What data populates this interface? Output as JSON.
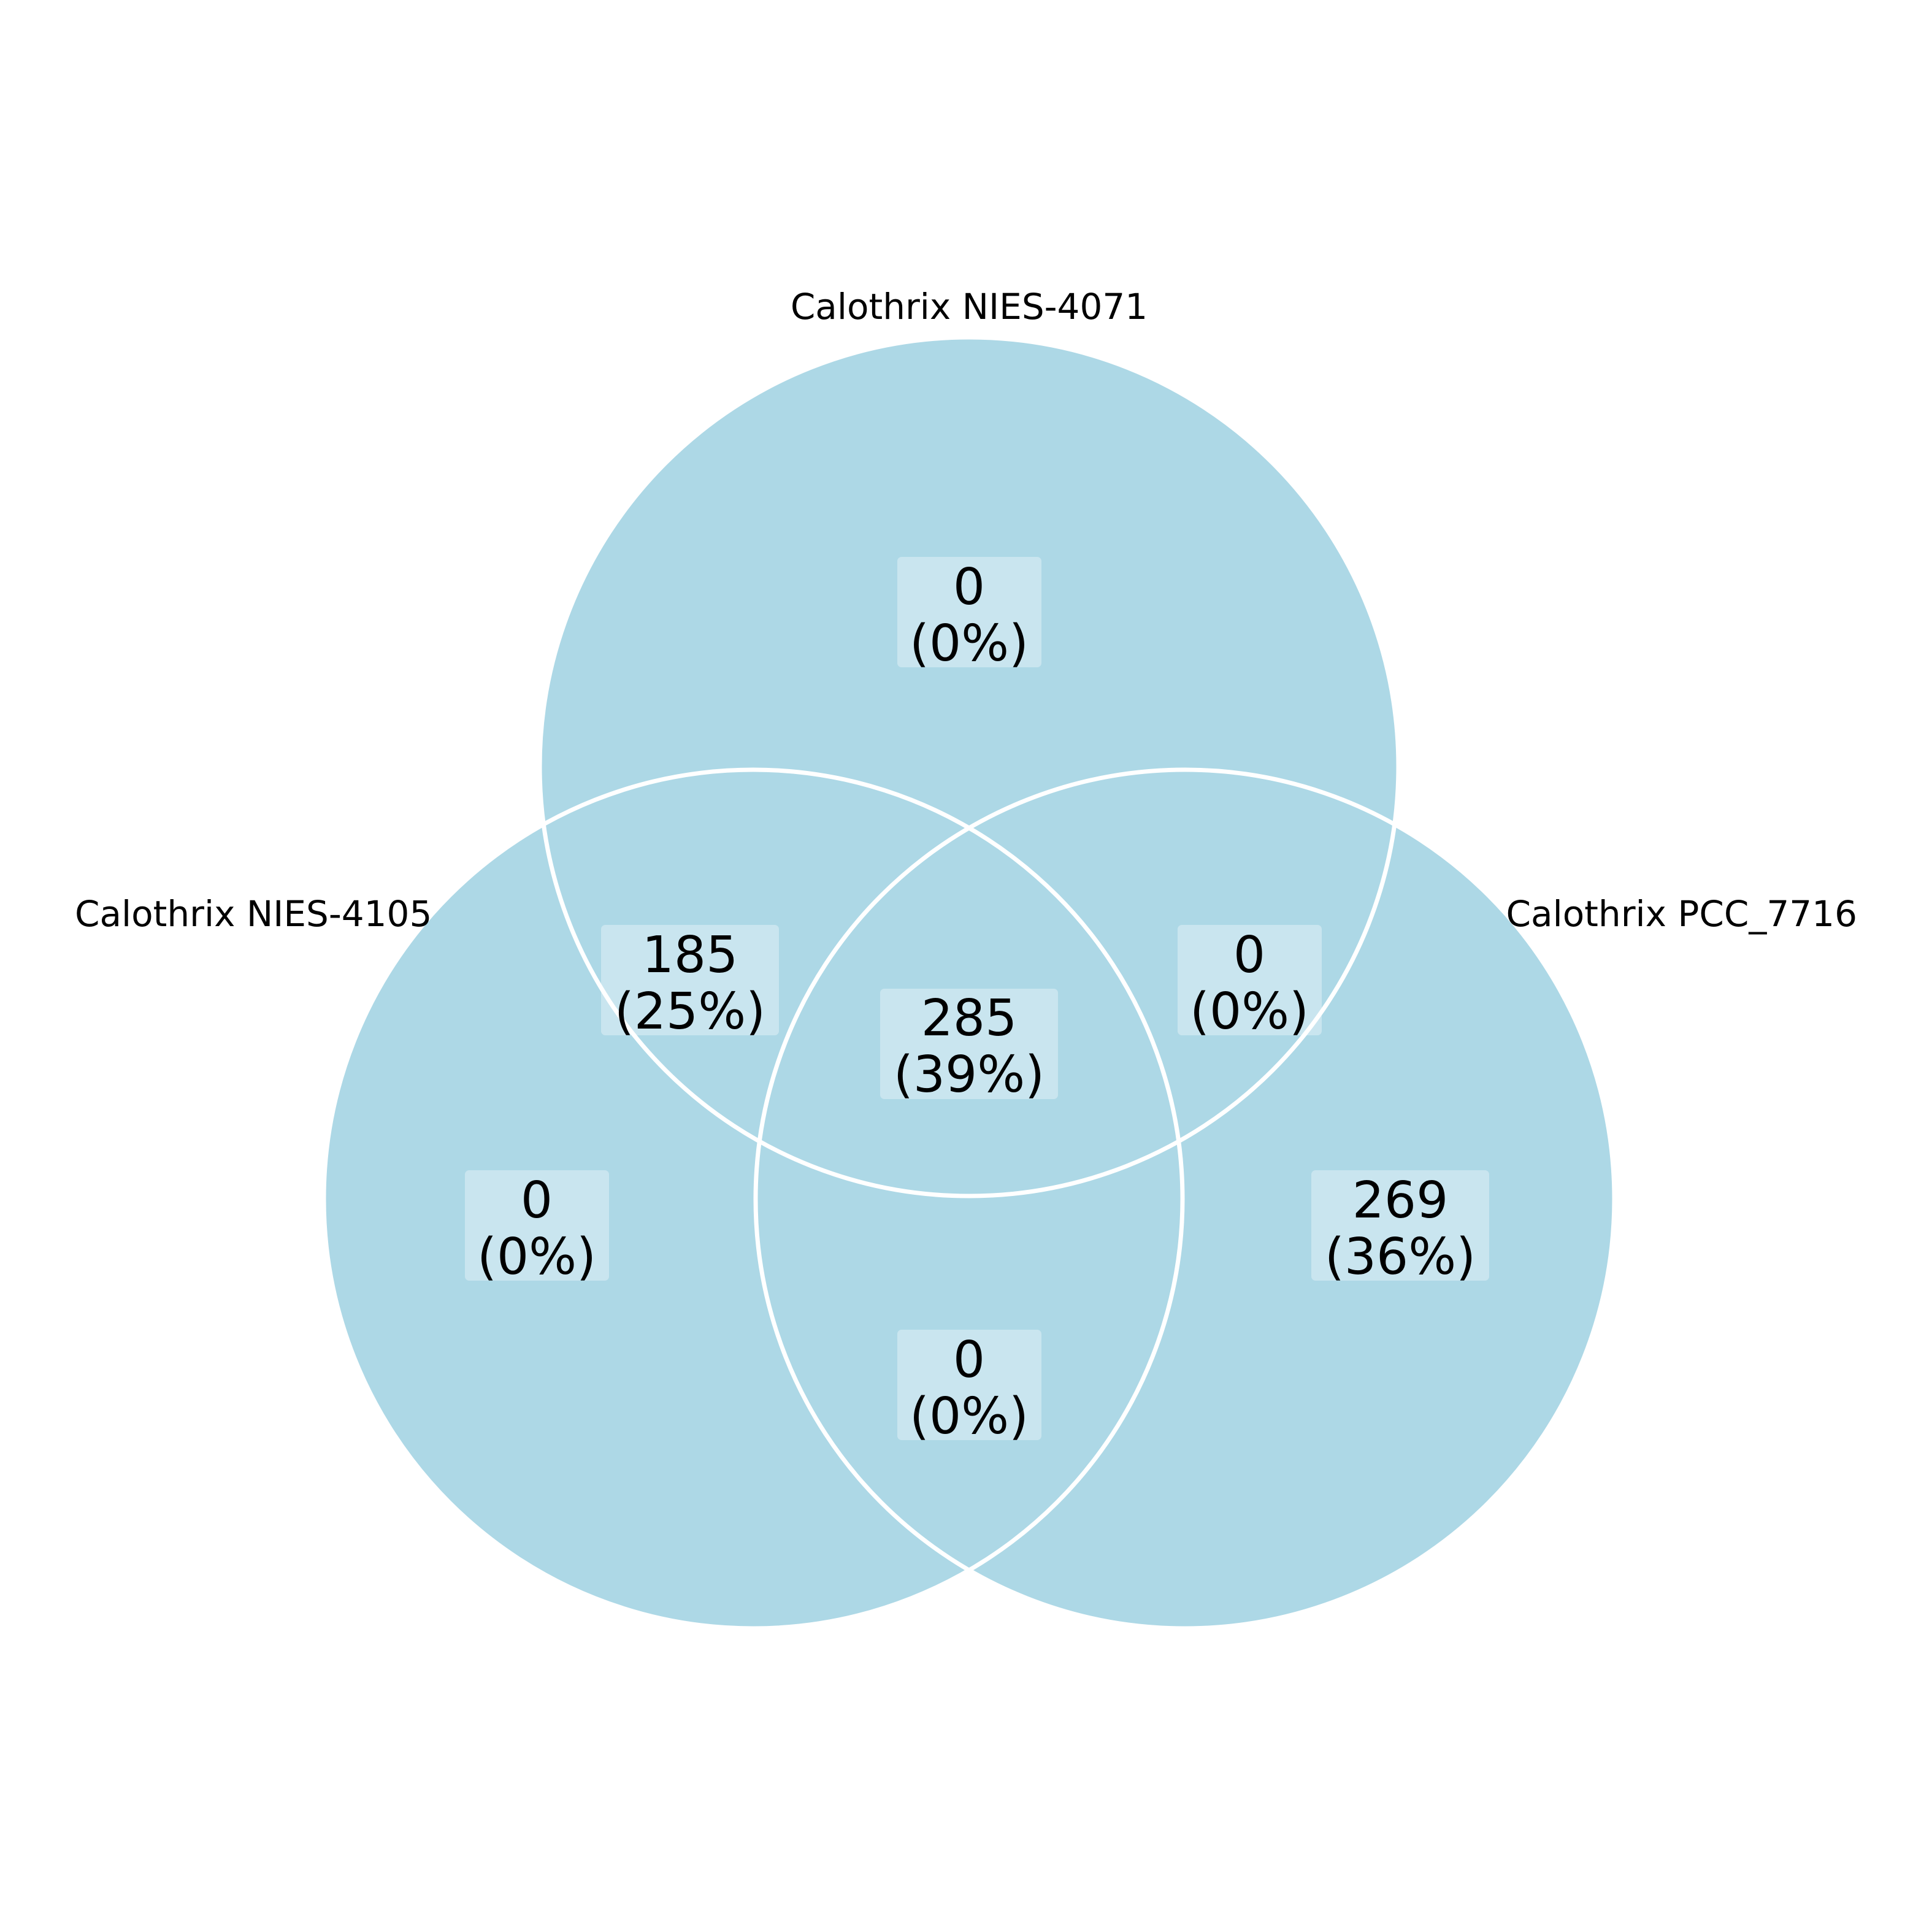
{
  "colors": {
    "circle_fill": "#ADD8E6",
    "outline": "#FFFFFF",
    "label_box": "#C8E5EE",
    "text": "#000000"
  },
  "sets": [
    {
      "id": "nies4071",
      "label": "Calothrix NIES-4071"
    },
    {
      "id": "nies4105",
      "label": "Calothrix NIES-4105"
    },
    {
      "id": "pcc7716",
      "label": "Calothrix PCC_7716"
    }
  ],
  "regions": [
    {
      "id": "only-nies4071",
      "sets": [
        "nies4071"
      ],
      "count": "0",
      "percent": "(0%)"
    },
    {
      "id": "nies4071-nies4105",
      "sets": [
        "nies4071",
        "nies4105"
      ],
      "count": "185",
      "percent": "(25%)"
    },
    {
      "id": "nies4071-pcc7716",
      "sets": [
        "nies4071",
        "pcc7716"
      ],
      "count": "0",
      "percent": "(0%)"
    },
    {
      "id": "all-three",
      "sets": [
        "nies4071",
        "nies4105",
        "pcc7716"
      ],
      "count": "285",
      "percent": "(39%)"
    },
    {
      "id": "only-nies4105",
      "sets": [
        "nies4105"
      ],
      "count": "0",
      "percent": "(0%)"
    },
    {
      "id": "only-pcc7716",
      "sets": [
        "pcc7716"
      ],
      "count": "269",
      "percent": "(36%)"
    },
    {
      "id": "nies4105-pcc7716",
      "sets": [
        "nies4105",
        "pcc7716"
      ],
      "count": "0",
      "percent": "(0%)"
    }
  ]
}
